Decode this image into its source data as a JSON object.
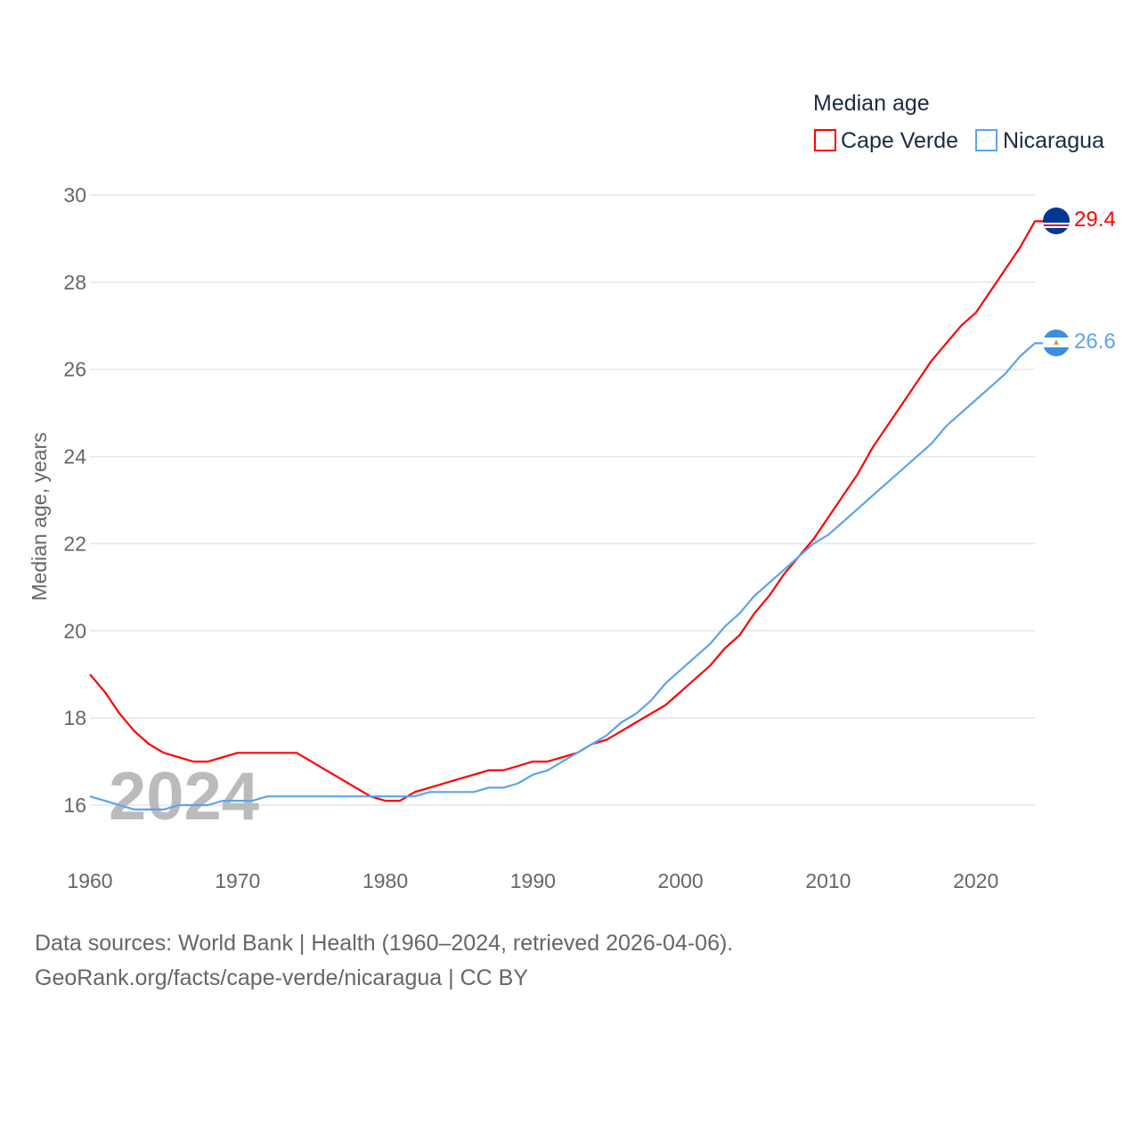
{
  "chart_data": {
    "type": "line",
    "title": "Median age",
    "xlabel": "",
    "ylabel": "Median age, years",
    "xlim": [
      1960,
      2024
    ],
    "ylim": [
      15,
      30
    ],
    "yticks": [
      16,
      18,
      20,
      22,
      24,
      26,
      28,
      30
    ],
    "xticks": [
      1960,
      1970,
      1980,
      1990,
      2000,
      2010,
      2020
    ],
    "grid": true,
    "legend_position": "top-right",
    "year_watermark": "2024",
    "x": [
      1960,
      1961,
      1962,
      1963,
      1964,
      1965,
      1966,
      1967,
      1968,
      1969,
      1970,
      1971,
      1972,
      1973,
      1974,
      1975,
      1976,
      1977,
      1978,
      1979,
      1980,
      1981,
      1982,
      1983,
      1984,
      1985,
      1986,
      1987,
      1988,
      1989,
      1990,
      1991,
      1992,
      1993,
      1994,
      1995,
      1996,
      1997,
      1998,
      1999,
      2000,
      2001,
      2002,
      2003,
      2004,
      2005,
      2006,
      2007,
      2008,
      2009,
      2010,
      2011,
      2012,
      2013,
      2014,
      2015,
      2016,
      2017,
      2018,
      2019,
      2020,
      2021,
      2022,
      2023,
      2024
    ],
    "series": [
      {
        "name": "Cape Verde",
        "color": "#ff0000",
        "end_label": "29.4",
        "values": [
          19.0,
          18.6,
          18.1,
          17.7,
          17.4,
          17.2,
          17.1,
          17.0,
          17.0,
          17.1,
          17.2,
          17.2,
          17.2,
          17.2,
          17.2,
          17.0,
          16.8,
          16.6,
          16.4,
          16.2,
          16.1,
          16.1,
          16.3,
          16.4,
          16.5,
          16.6,
          16.7,
          16.8,
          16.8,
          16.9,
          17.0,
          17.0,
          17.1,
          17.2,
          17.4,
          17.5,
          17.7,
          17.9,
          18.1,
          18.3,
          18.6,
          18.9,
          19.2,
          19.6,
          19.9,
          20.4,
          20.8,
          21.3,
          21.7,
          22.1,
          22.6,
          23.1,
          23.6,
          24.2,
          24.7,
          25.2,
          25.7,
          26.2,
          26.6,
          27.0,
          27.3,
          27.8,
          28.3,
          28.8,
          29.4
        ]
      },
      {
        "name": "Nicaragua",
        "color": "#5ba4ec",
        "end_label": "26.6",
        "values": [
          16.2,
          16.1,
          16.0,
          15.9,
          15.9,
          15.9,
          16.0,
          16.0,
          16.0,
          16.1,
          16.1,
          16.1,
          16.2,
          16.2,
          16.2,
          16.2,
          16.2,
          16.2,
          16.2,
          16.2,
          16.2,
          16.2,
          16.2,
          16.3,
          16.3,
          16.3,
          16.3,
          16.4,
          16.4,
          16.5,
          16.7,
          16.8,
          17.0,
          17.2,
          17.4,
          17.6,
          17.9,
          18.1,
          18.4,
          18.8,
          19.1,
          19.4,
          19.7,
          20.1,
          20.4,
          20.8,
          21.1,
          21.4,
          21.7,
          22.0,
          22.2,
          22.5,
          22.8,
          23.1,
          23.4,
          23.7,
          24.0,
          24.3,
          24.7,
          25.0,
          25.3,
          25.6,
          25.9,
          26.3,
          26.6
        ]
      }
    ]
  },
  "footer": {
    "line1": "Data sources: World Bank | Health (1960–2024, retrieved 2026-04-06).",
    "line2": "GeoRank.org/facts/cape-verde/nicaragua | CC BY"
  }
}
